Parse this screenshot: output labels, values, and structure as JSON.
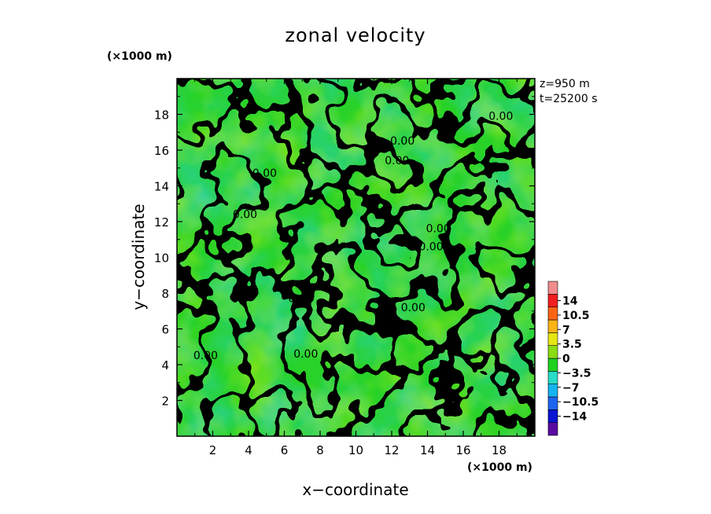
{
  "chart_data": {
    "type": "heatmap",
    "title": "zonal velocity",
    "xlabel": "x−coordinate",
    "ylabel": "y−coordinate",
    "x_unit": "(×1000 m)",
    "y_unit": "(×1000 m)",
    "xlim": [
      0,
      20
    ],
    "ylim": [
      0,
      20
    ],
    "x_ticks": [
      2,
      4,
      6,
      8,
      10,
      12,
      14,
      16,
      18
    ],
    "y_ticks": [
      2,
      4,
      6,
      8,
      10,
      12,
      14,
      16,
      18
    ],
    "annotations": [
      "z=950 m",
      "t=25200 s"
    ],
    "contour_level": 0,
    "contour_label": "0.00",
    "colorbar": {
      "levels": [
        -14,
        -10.5,
        -7,
        -3.5,
        0,
        3.5,
        7,
        10.5,
        14
      ],
      "labels": [
        "14",
        "10.5",
        "7",
        "3.5",
        "0",
        "−3.5",
        "−7",
        "−10.5",
        "−14"
      ],
      "colors": [
        "#5a0aa0",
        "#0a14d2",
        "#1e64f0",
        "#14b4f0",
        "#28dcc8",
        "#1ed21e",
        "#8cdc14",
        "#e6e614",
        "#fab414",
        "#fa6414",
        "#f01e1e",
        "#f08c8c"
      ]
    },
    "field_colors": {
      "negative": "#2ad2a0",
      "neutral": "#28d228",
      "positive": "#8ce61e"
    },
    "contour_label_positions": [
      {
        "x": 18.1,
        "y": 17.7
      },
      {
        "x": 12.6,
        "y": 16.3
      },
      {
        "x": 12.3,
        "y": 15.2
      },
      {
        "x": 4.9,
        "y": 14.5
      },
      {
        "x": 3.8,
        "y": 12.2
      },
      {
        "x": 14.6,
        "y": 11.4
      },
      {
        "x": 14.2,
        "y": 10.4
      },
      {
        "x": 6.9,
        "y": 7.5
      },
      {
        "x": 13.2,
        "y": 7.0
      },
      {
        "x": 1.6,
        "y": 4.3
      },
      {
        "x": 7.2,
        "y": 4.4
      }
    ],
    "grid": false,
    "legend": "colorbar-right"
  }
}
